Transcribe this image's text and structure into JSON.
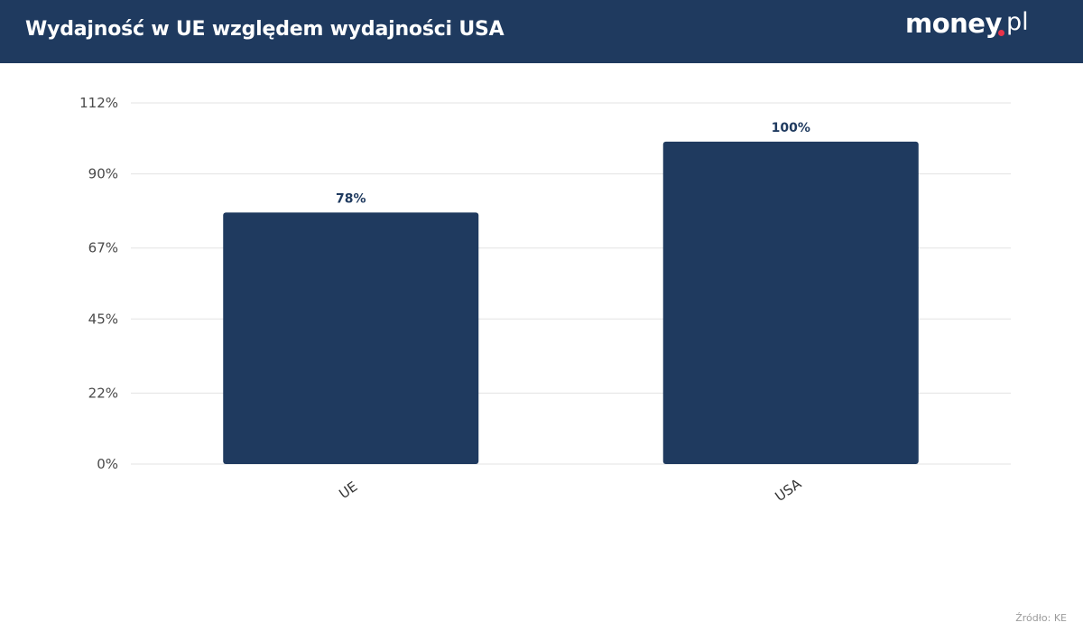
{
  "header": {
    "title": "Wydajność w UE względem wydajności USA",
    "background": "#1f3a5f"
  },
  "logo": {
    "brand": "money",
    "tld": "pl",
    "dot_color": "#e8334a"
  },
  "chart_data": {
    "type": "bar",
    "title": "Wydajność w UE względem wydajności USA",
    "categories": [
      "UE",
      "USA"
    ],
    "values": [
      78,
      100
    ],
    "value_labels": [
      "78%",
      "100%"
    ],
    "y_ticks": [
      0,
      22,
      45,
      67,
      90,
      112
    ],
    "y_tick_labels": [
      "0%",
      "22%",
      "45%",
      "67%",
      "90%",
      "112%"
    ],
    "ylim": [
      0,
      112
    ],
    "xlabel": "",
    "ylabel": "",
    "grid": true,
    "bar_color": "#1f3a5f"
  },
  "footer": {
    "source": "Źródło: KE"
  }
}
